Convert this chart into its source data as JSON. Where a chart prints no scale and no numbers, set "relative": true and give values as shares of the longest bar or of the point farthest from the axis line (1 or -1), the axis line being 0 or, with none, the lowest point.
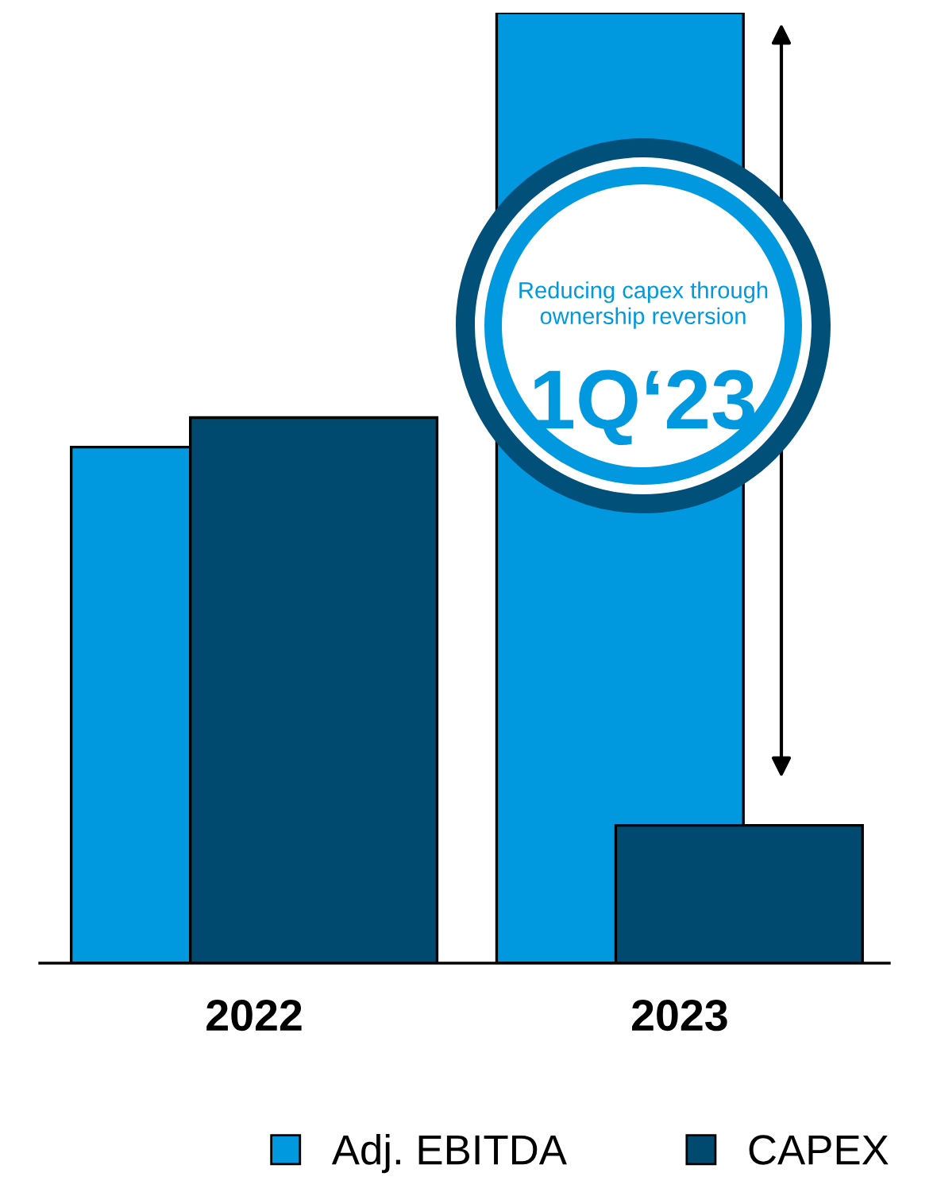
{
  "chart_data": {
    "type": "bar",
    "relative": true,
    "categories": [
      "2022",
      "2023"
    ],
    "series": [
      {
        "name": "Adj. EBITDA",
        "color": "#0099e0",
        "values": [
          0.543,
          1
        ]
      },
      {
        "name": "CAPEX",
        "color": "#004a70",
        "values": [
          0.574,
          0.145
        ]
      }
    ],
    "annotations": [
      "Reducing capex through ownership reversion",
      "1Q‘23"
    ],
    "legend": "bottom"
  }
}
